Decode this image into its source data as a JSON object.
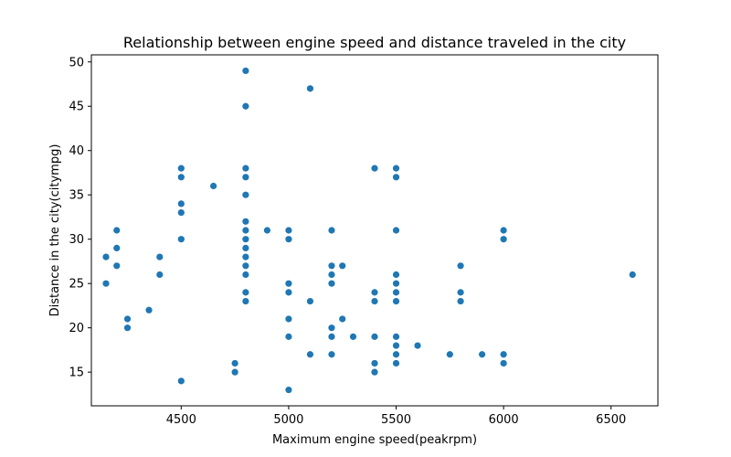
{
  "chart_data": {
    "type": "scatter",
    "title": "Relationship between engine speed and distance traveled in the city",
    "xlabel": "Maximum engine speed(peakrpm)",
    "ylabel": "Distance in the city(citympg)",
    "xlim": [
      4082,
      6718
    ],
    "ylim": [
      11.2,
      50.8
    ],
    "xticks": [
      4500,
      5000,
      5500,
      6000,
      6500
    ],
    "yticks": [
      15,
      20,
      25,
      30,
      35,
      40,
      45,
      50
    ],
    "grid": false,
    "legend": "none",
    "color": "#1f77b4",
    "points": [
      {
        "x": 4150,
        "y": 28
      },
      {
        "x": 4150,
        "y": 25
      },
      {
        "x": 4200,
        "y": 31
      },
      {
        "x": 4200,
        "y": 29
      },
      {
        "x": 4200,
        "y": 27
      },
      {
        "x": 4250,
        "y": 21
      },
      {
        "x": 4250,
        "y": 20
      },
      {
        "x": 4350,
        "y": 22
      },
      {
        "x": 4400,
        "y": 28
      },
      {
        "x": 4400,
        "y": 26
      },
      {
        "x": 4500,
        "y": 38
      },
      {
        "x": 4500,
        "y": 37
      },
      {
        "x": 4500,
        "y": 34
      },
      {
        "x": 4500,
        "y": 33
      },
      {
        "x": 4500,
        "y": 30
      },
      {
        "x": 4500,
        "y": 14
      },
      {
        "x": 4650,
        "y": 36
      },
      {
        "x": 4750,
        "y": 16
      },
      {
        "x": 4750,
        "y": 15
      },
      {
        "x": 4800,
        "y": 49
      },
      {
        "x": 4800,
        "y": 45
      },
      {
        "x": 4800,
        "y": 38
      },
      {
        "x": 4800,
        "y": 37
      },
      {
        "x": 4800,
        "y": 35
      },
      {
        "x": 4800,
        "y": 32
      },
      {
        "x": 4800,
        "y": 31
      },
      {
        "x": 4800,
        "y": 30
      },
      {
        "x": 4800,
        "y": 29
      },
      {
        "x": 4800,
        "y": 28
      },
      {
        "x": 4800,
        "y": 27
      },
      {
        "x": 4800,
        "y": 26
      },
      {
        "x": 4800,
        "y": 24
      },
      {
        "x": 4800,
        "y": 23
      },
      {
        "x": 4900,
        "y": 31
      },
      {
        "x": 5000,
        "y": 31
      },
      {
        "x": 5000,
        "y": 30
      },
      {
        "x": 5000,
        "y": 25
      },
      {
        "x": 5000,
        "y": 24
      },
      {
        "x": 5000,
        "y": 21
      },
      {
        "x": 5000,
        "y": 19
      },
      {
        "x": 5000,
        "y": 13
      },
      {
        "x": 5100,
        "y": 47
      },
      {
        "x": 5100,
        "y": 23
      },
      {
        "x": 5100,
        "y": 17
      },
      {
        "x": 5200,
        "y": 31
      },
      {
        "x": 5200,
        "y": 27
      },
      {
        "x": 5200,
        "y": 26
      },
      {
        "x": 5200,
        "y": 25
      },
      {
        "x": 5200,
        "y": 20
      },
      {
        "x": 5200,
        "y": 19
      },
      {
        "x": 5200,
        "y": 17
      },
      {
        "x": 5250,
        "y": 27
      },
      {
        "x": 5250,
        "y": 21
      },
      {
        "x": 5300,
        "y": 19
      },
      {
        "x": 5400,
        "y": 38
      },
      {
        "x": 5400,
        "y": 24
      },
      {
        "x": 5400,
        "y": 23
      },
      {
        "x": 5400,
        "y": 19
      },
      {
        "x": 5400,
        "y": 16
      },
      {
        "x": 5400,
        "y": 15
      },
      {
        "x": 5500,
        "y": 38
      },
      {
        "x": 5500,
        "y": 37
      },
      {
        "x": 5500,
        "y": 31
      },
      {
        "x": 5500,
        "y": 26
      },
      {
        "x": 5500,
        "y": 25
      },
      {
        "x": 5500,
        "y": 24
      },
      {
        "x": 5500,
        "y": 23
      },
      {
        "x": 5500,
        "y": 19
      },
      {
        "x": 5500,
        "y": 18
      },
      {
        "x": 5500,
        "y": 17
      },
      {
        "x": 5500,
        "y": 16
      },
      {
        "x": 5600,
        "y": 18
      },
      {
        "x": 5750,
        "y": 17
      },
      {
        "x": 5800,
        "y": 27
      },
      {
        "x": 5800,
        "y": 24
      },
      {
        "x": 5800,
        "y": 23
      },
      {
        "x": 5900,
        "y": 17
      },
      {
        "x": 6000,
        "y": 31
      },
      {
        "x": 6000,
        "y": 30
      },
      {
        "x": 6000,
        "y": 17
      },
      {
        "x": 6000,
        "y": 16
      },
      {
        "x": 6600,
        "y": 26
      }
    ]
  }
}
